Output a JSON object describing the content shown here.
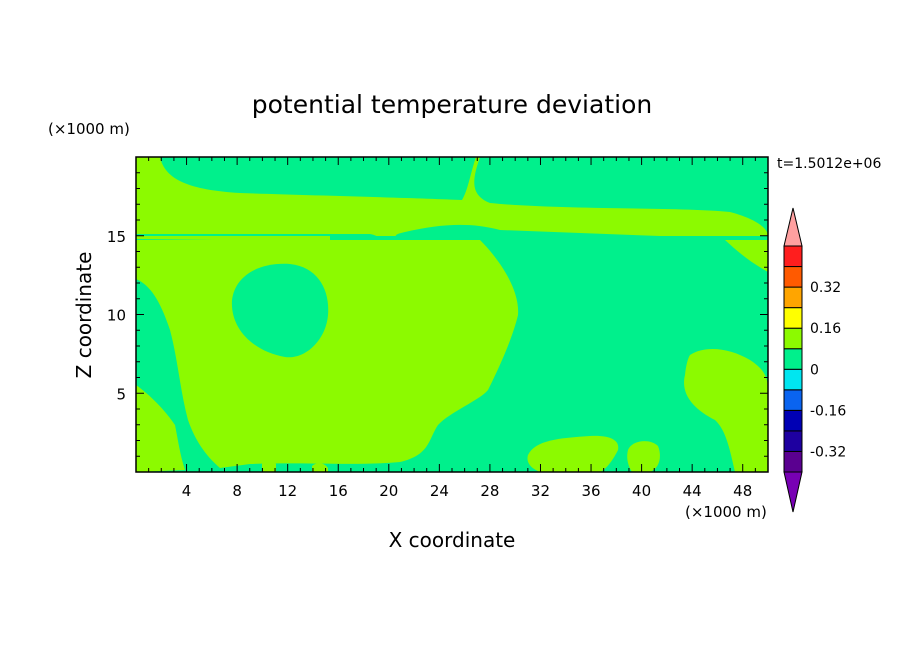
{
  "chart_data": {
    "type": "heatmap",
    "title": "potential temperature deviation",
    "time_label": "t=1.5012e+06",
    "xlabel": "X coordinate",
    "ylabel": "Z coordinate",
    "x_unit": "(×1000 m)",
    "y_unit": "(×1000 m)",
    "xlim": [
      0,
      50
    ],
    "ylim": [
      0,
      20
    ],
    "x_ticks": [
      4,
      8,
      12,
      16,
      20,
      24,
      28,
      32,
      36,
      40,
      44,
      48
    ],
    "y_ticks": [
      5,
      10,
      15
    ],
    "colorbar": {
      "levels": [
        -0.4,
        -0.32,
        -0.24,
        -0.16,
        -0.08,
        0,
        0.08,
        0.16,
        0.24,
        0.32,
        0.4
      ],
      "colors": [
        "#5a0090",
        "#1e00a0",
        "#0000b4",
        "#0a64f0",
        "#00e6f0",
        "#00f08c",
        "#8cfa00",
        "#ffff00",
        "#ffa500",
        "#ff5a00",
        "#ff1e1e"
      ],
      "under_color": "#7800b4",
      "over_color": "#ffa0a0",
      "labels": [
        "0.32",
        "0.16",
        "0",
        "-0.16",
        "-0.32"
      ]
    },
    "dominant_levels": [
      {
        "name": "0 to 0.08",
        "color": "#8cfa00"
      },
      {
        "name": "-0.08 to 0",
        "color": "#00f08c"
      }
    ]
  }
}
